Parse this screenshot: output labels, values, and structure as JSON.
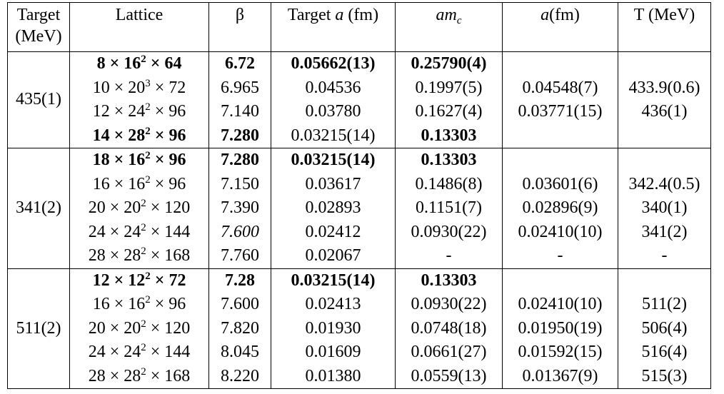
{
  "headers": {
    "target_line1": "Target",
    "target_line2": "(MeV)",
    "lattice": "Lattice",
    "beta": "β",
    "target_a_pre": "Target ",
    "target_a_var": "a",
    "target_a_post": " (fm)",
    "amc_var": "am",
    "amc_sub": "c",
    "a_var": "a",
    "a_post": "(fm)",
    "T": "T (MeV)"
  },
  "groups": [
    {
      "target": "435(1)",
      "rows": [
        {
          "n1": "8",
          "n2": "16",
          "p": "2",
          "n3": "64",
          "beta": "6.72",
          "ta": "0.05662(13)",
          "amc": "0.25790(4)",
          "a": "",
          "T": "",
          "bold": true,
          "bold_beta": true,
          "bold_ta": true,
          "bold_amc": true
        },
        {
          "n1": "10",
          "n2": "20",
          "p": "3",
          "n3": "72",
          "beta": "6.965",
          "ta": "0.04536",
          "amc": "0.1997(5)",
          "a": "0.04548(7)",
          "T": "433.9(0.6)"
        },
        {
          "n1": "12",
          "n2": "24",
          "p": "2",
          "n3": "96",
          "beta": "7.140",
          "ta": "0.03780",
          "amc": "0.1627(4)",
          "a": "0.03771(15)",
          "T": "436(1)"
        },
        {
          "n1": "14",
          "n2": "28",
          "p": "2",
          "n3": "96",
          "beta": "7.280",
          "ta": "0.03215(14)",
          "amc": "0.13303",
          "a": "",
          "T": "",
          "bold": true,
          "bold_beta": true,
          "bold_ta": false,
          "bold_amc": true
        }
      ]
    },
    {
      "target": "341(2)",
      "rows": [
        {
          "n1": "18",
          "n2": "16",
          "p": "2",
          "n3": "96",
          "beta": "7.280",
          "ta": "0.03215(14)",
          "amc": "0.13303",
          "a": "",
          "T": "",
          "bold": true,
          "bold_beta": true,
          "bold_ta": true,
          "bold_amc": true
        },
        {
          "n1": "16",
          "n2": "16",
          "p": "2",
          "n3": "96",
          "beta": "7.150",
          "ta": "0.03617",
          "amc": "0.1486(8)",
          "a": "0.03601(6)",
          "T": "342.4(0.5)"
        },
        {
          "n1": "20",
          "n2": "20",
          "p": "2",
          "n3": "120",
          "beta": "7.390",
          "ta": "0.02893",
          "amc": "0.1151(7)",
          "a": "0.02896(9)",
          "T": "340(1)"
        },
        {
          "n1": "24",
          "n2": "24",
          "p": "2",
          "n3": "144",
          "beta": "7.600",
          "ta": "0.02412",
          "amc": "0.0930(22)",
          "a": "0.02410(10)",
          "T": "341(2)",
          "italic_beta": true
        },
        {
          "n1": "28",
          "n2": "28",
          "p": "2",
          "n3": "168",
          "beta": "7.760",
          "ta": "0.02067",
          "amc": "-",
          "a": "-",
          "T": "-"
        }
      ]
    },
    {
      "target": "511(2)",
      "rows": [
        {
          "n1": "12",
          "n2": "12",
          "p": "2",
          "n3": "72",
          "beta": "7.28",
          "ta": "0.03215(14)",
          "amc": "0.13303",
          "a": "",
          "T": "",
          "bold": true,
          "bold_beta": true,
          "bold_ta": true,
          "bold_amc": true
        },
        {
          "n1": "16",
          "n2": "16",
          "p": "2",
          "n3": "96",
          "beta": "7.600",
          "ta": "0.02413",
          "amc": "0.0930(22)",
          "a": "0.02410(10)",
          "T": "511(2)"
        },
        {
          "n1": "20",
          "n2": "20",
          "p": "2",
          "n3": "120",
          "beta": "7.820",
          "ta": "0.01930",
          "amc": "0.0748(18)",
          "a": "0.01950(19)",
          "T": "506(4)"
        },
        {
          "n1": "24",
          "n2": "24",
          "p": "2",
          "n3": "144",
          "beta": "8.045",
          "ta": "0.01609",
          "amc": "0.0661(27)",
          "a": "0.01592(15)",
          "T": "516(4)"
        },
        {
          "n1": "28",
          "n2": "28",
          "p": "2",
          "n3": "168",
          "beta": "8.220",
          "ta": "0.01380",
          "amc": "0.0559(13)",
          "a": "0.01367(9)",
          "T": "515(3)"
        }
      ]
    }
  ]
}
